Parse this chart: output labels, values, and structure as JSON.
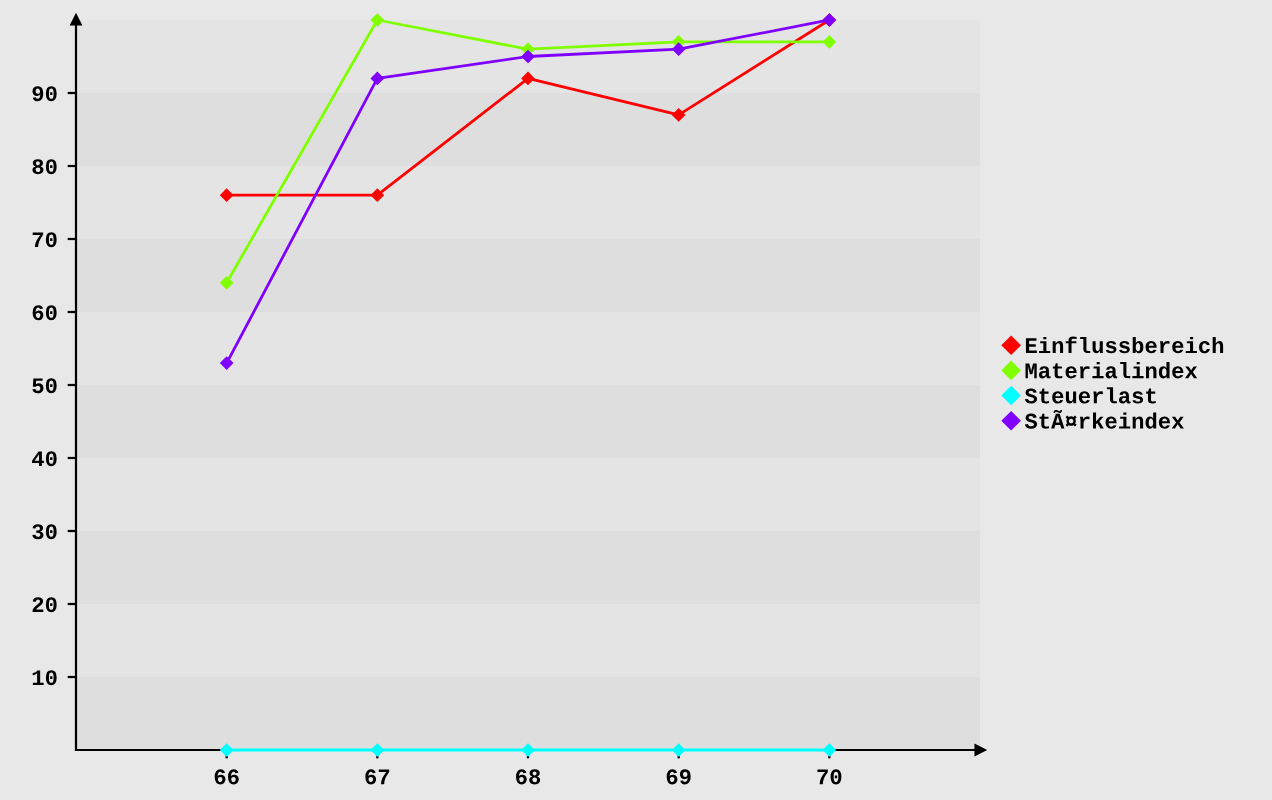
{
  "chart_data": {
    "type": "line",
    "x": [
      66,
      67,
      68,
      69,
      70
    ],
    "xlim": [
      65,
      71
    ],
    "xticks": [
      66,
      67,
      68,
      69,
      70
    ],
    "ylim": [
      0,
      100
    ],
    "yticks": [
      10,
      20,
      30,
      40,
      50,
      60,
      70,
      80,
      90
    ],
    "bands": [
      {
        "axis": "y",
        "from": 0,
        "to": 10,
        "color": "#dedede"
      },
      {
        "axis": "y",
        "from": 20,
        "to": 30,
        "color": "#dedede"
      },
      {
        "axis": "y",
        "from": 40,
        "to": 50,
        "color": "#dedede"
      },
      {
        "axis": "y",
        "from": 60,
        "to": 70,
        "color": "#dedede"
      },
      {
        "axis": "y",
        "from": 80,
        "to": 90,
        "color": "#dedede"
      }
    ],
    "legend": "right",
    "marker": "diamond",
    "line_style": "solid",
    "series": [
      {
        "name": "Einflussbereich",
        "color": "#ff0000",
        "values": [
          76,
          76,
          92,
          87,
          100
        ]
      },
      {
        "name": "Materialindex",
        "color": "#80ff00",
        "values": [
          64,
          100,
          96,
          97,
          97
        ]
      },
      {
        "name": "Steuerlast",
        "color": "#00ffff",
        "values": [
          0,
          0,
          0,
          0,
          0
        ]
      },
      {
        "name": "StÃ¤rkeindex",
        "color": "#8000ff",
        "values": [
          53,
          92,
          95,
          96,
          100
        ]
      }
    ]
  }
}
